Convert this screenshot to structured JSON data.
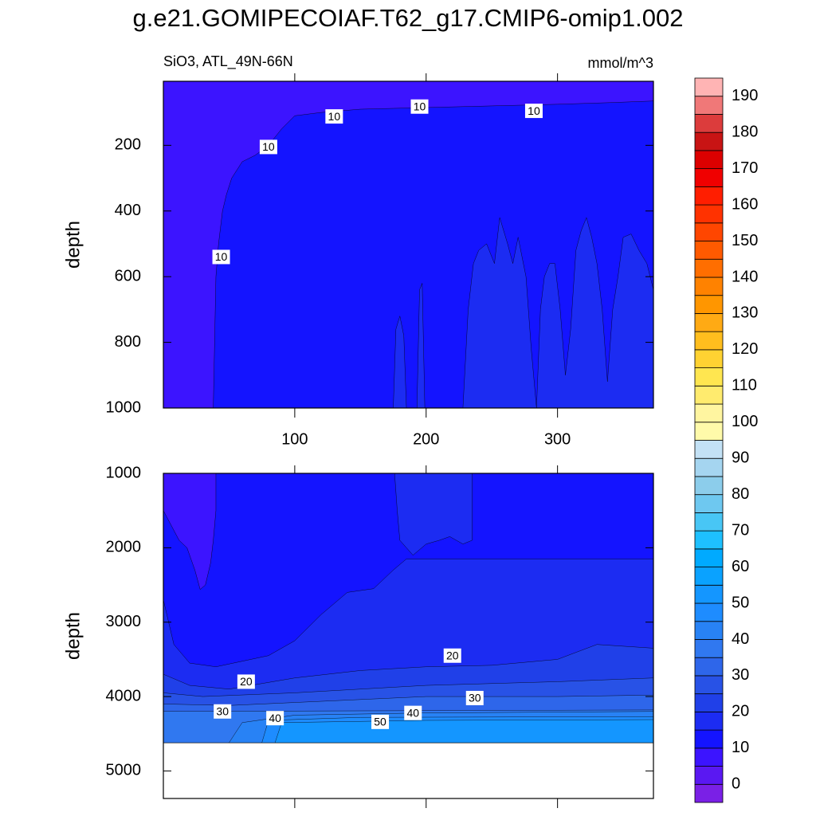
{
  "chart_data": {
    "type": "contour",
    "title": "g.e21.GOMIPECOIAF.T62_g17.CMIP6-omip1.002",
    "subtitle": "SiO3, ATL_49N-66N",
    "units": "mmol/m^3",
    "panels": [
      {
        "ylabel": "depth",
        "xlim": [
          0,
          373
        ],
        "xticks": [
          100,
          200,
          300
        ],
        "show_xtick_labels": true,
        "ylim": [
          5,
          1000
        ],
        "y_reversed": true,
        "yticks": [
          200,
          400,
          600,
          800,
          1000
        ],
        "regions": [
          {
            "level": 10,
            "x": [
              0,
              373,
              373,
              0
            ],
            "y": [
              5,
              5,
              1000,
              1000
            ]
          },
          {
            "level": 5,
            "x": [
              0,
              373,
              373,
              340,
              300,
              250,
              200,
              150,
              120,
              100,
              90,
              80,
              70,
              60,
              52,
              48,
              45,
              42,
              40,
              39,
              38,
              0
            ],
            "y": [
              5,
              5,
              65,
              70,
              75,
              80,
              85,
              90,
              100,
              110,
              150,
              200,
              230,
              250,
              300,
              350,
              400,
              500,
              600,
              800,
              1000,
              1000
            ]
          },
          {
            "level": 15,
            "x": [
              175,
              177,
              180,
              183,
              185
            ],
            "y": [
              1000,
              760,
              720,
              780,
              1000
            ]
          },
          {
            "level": 15,
            "x": [
              193,
              195,
              197,
              199
            ],
            "y": [
              1000,
              640,
              620,
              1000
            ]
          },
          {
            "level": 15,
            "x": [
              228,
              232,
              236,
              240,
              246,
              252,
              256,
              262,
              266,
              270,
              276,
              280,
              284,
              287,
              290,
              294,
              298,
              302,
              306,
              310,
              314,
              318,
              322,
              326,
              330,
              334,
              338,
              342,
              346,
              350,
              356,
              362,
              368,
              373,
              373
            ],
            "y": [
              1000,
              700,
              560,
              520,
              500,
              560,
              420,
              500,
              560,
              480,
              600,
              820,
              1000,
              700,
              600,
              560,
              560,
              700,
              900,
              760,
              520,
              460,
              420,
              480,
              560,
              700,
              920,
              700,
              600,
              480,
              470,
              520,
              560,
              640,
              1000
            ]
          }
        ],
        "labels": [
          {
            "value": 10,
            "x": 44,
            "y": 540
          },
          {
            "value": 10,
            "x": 80,
            "y": 205
          },
          {
            "value": 10,
            "x": 130,
            "y": 112
          },
          {
            "value": 10,
            "x": 195,
            "y": 82
          },
          {
            "value": 10,
            "x": 282,
            "y": 95
          }
        ]
      },
      {
        "ylabel": "depth",
        "xlim": [
          0,
          373
        ],
        "xticks": [
          100,
          200,
          300
        ],
        "show_xtick_labels": false,
        "ylim": [
          1000,
          5370
        ],
        "y_reversed": true,
        "yticks": [
          1000,
          2000,
          3000,
          4000,
          5000
        ],
        "regions": [
          {
            "level": 10,
            "x": [
              0,
              373,
              373,
              0
            ],
            "y": [
              1000,
              1000,
              4620,
              4620
            ]
          },
          {
            "level": 5,
            "x": [
              0,
              40,
              40,
              38,
              36,
              32,
              28,
              24,
              18,
              12,
              6,
              0
            ],
            "y": [
              1000,
              1000,
              1500,
              1900,
              2200,
              2500,
              2560,
              2300,
              2000,
              1900,
              1700,
              1500
            ]
          },
          {
            "level": 15,
            "x": [
              176,
              235,
              235,
              228,
              218,
              210,
              200,
              190,
              180,
              178
            ],
            "y": [
              1000,
              1000,
              1900,
              1950,
              1850,
              1900,
              1950,
              2100,
              1900,
              1500
            ]
          },
          {
            "level": 15,
            "x": [
              0,
              8,
              20,
              40,
              80,
              100,
              120,
              140,
              160,
              175,
              185,
              373,
              373,
              0
            ],
            "y": [
              2700,
              3300,
              3550,
              3600,
              3450,
              3250,
              2900,
              2600,
              2550,
              2300,
              2150,
              2150,
              4620,
              4620
            ]
          },
          {
            "level": 20,
            "x": [
              0,
              20,
              50,
              100,
              150,
              200,
              250,
              300,
              330,
              373,
              373,
              0
            ],
            "y": [
              3700,
              3850,
              3900,
              3750,
              3650,
              3600,
              3580,
              3500,
              3300,
              3350,
              4620,
              4620
            ]
          },
          {
            "level": 25,
            "x": [
              0,
              30,
              100,
              200,
              300,
              373,
              373,
              0
            ],
            "y": [
              3950,
              4000,
              3950,
              3850,
              3800,
              3750,
              4620,
              4620
            ]
          },
          {
            "level": 30,
            "x": [
              0,
              50,
              100,
              200,
              300,
              373,
              373,
              0
            ],
            "y": [
              4100,
              4120,
              4080,
              4000,
              4000,
              3980,
              4620,
              4620
            ]
          },
          {
            "level": 35,
            "x": [
              0,
              373,
              373,
              0
            ],
            "y": [
              4200,
              4180,
              4620,
              4620
            ]
          },
          {
            "level": 40,
            "x": [
              50,
              60,
              100,
              200,
              373,
              373
            ],
            "y": [
              4620,
              4350,
              4250,
              4220,
              4200,
              4620
            ]
          },
          {
            "level": 45,
            "x": [
              75,
              80,
              150,
              373,
              373
            ],
            "y": [
              4620,
              4320,
              4280,
              4270,
              4620
            ]
          },
          {
            "level": 50,
            "x": [
              85,
              90,
              200,
              373,
              373
            ],
            "y": [
              4620,
              4350,
              4320,
              4310,
              4620
            ]
          }
        ],
        "labels": [
          {
            "value": 20,
            "x": 63,
            "y": 3800
          },
          {
            "value": 20,
            "x": 220,
            "y": 3450
          },
          {
            "value": 30,
            "x": 45,
            "y": 4200
          },
          {
            "value": 30,
            "x": 237,
            "y": 4020
          },
          {
            "value": 40,
            "x": 85,
            "y": 4290
          },
          {
            "value": 40,
            "x": 190,
            "y": 4220
          },
          {
            "value": 50,
            "x": 165,
            "y": 4340
          }
        ]
      }
    ],
    "colorbar": {
      "levels": [
        -5,
        0,
        5,
        10,
        15,
        20,
        25,
        30,
        35,
        40,
        45,
        50,
        55,
        60,
        65,
        70,
        75,
        80,
        85,
        90,
        95,
        100,
        105,
        110,
        115,
        120,
        125,
        130,
        135,
        140,
        145,
        150,
        155,
        160,
        165,
        170,
        175,
        180,
        185,
        190,
        195
      ],
      "colors": [
        "#7a20e6",
        "#5a18f2",
        "#3c14ff",
        "#1414ff",
        "#1c2cf2",
        "#2040e8",
        "#2852e6",
        "#2e66ea",
        "#3078f0",
        "#2882f5",
        "#1e8cff",
        "#1496ff",
        "#0aa2ff",
        "#00aaff",
        "#1ec0ff",
        "#48c6f5",
        "#6ec8f0",
        "#8ccdeb",
        "#a5d5f0",
        "#c3e1f5",
        "#fffaaa",
        "#fff5a0",
        "#ffeb6e",
        "#ffe650",
        "#ffd232",
        "#ffbe1e",
        "#ffaa14",
        "#ff9600",
        "#ff8200",
        "#ff6e00",
        "#ff5a00",
        "#ff4600",
        "#ff3200",
        "#ff1e00",
        "#f00000",
        "#dc0000",
        "#c81414",
        "#dc3c3c",
        "#f07878",
        "#ffb4b4"
      ],
      "ticks": [
        0,
        10,
        20,
        30,
        40,
        50,
        60,
        70,
        80,
        90,
        100,
        110,
        120,
        130,
        140,
        150,
        160,
        170,
        180,
        190
      ]
    }
  }
}
